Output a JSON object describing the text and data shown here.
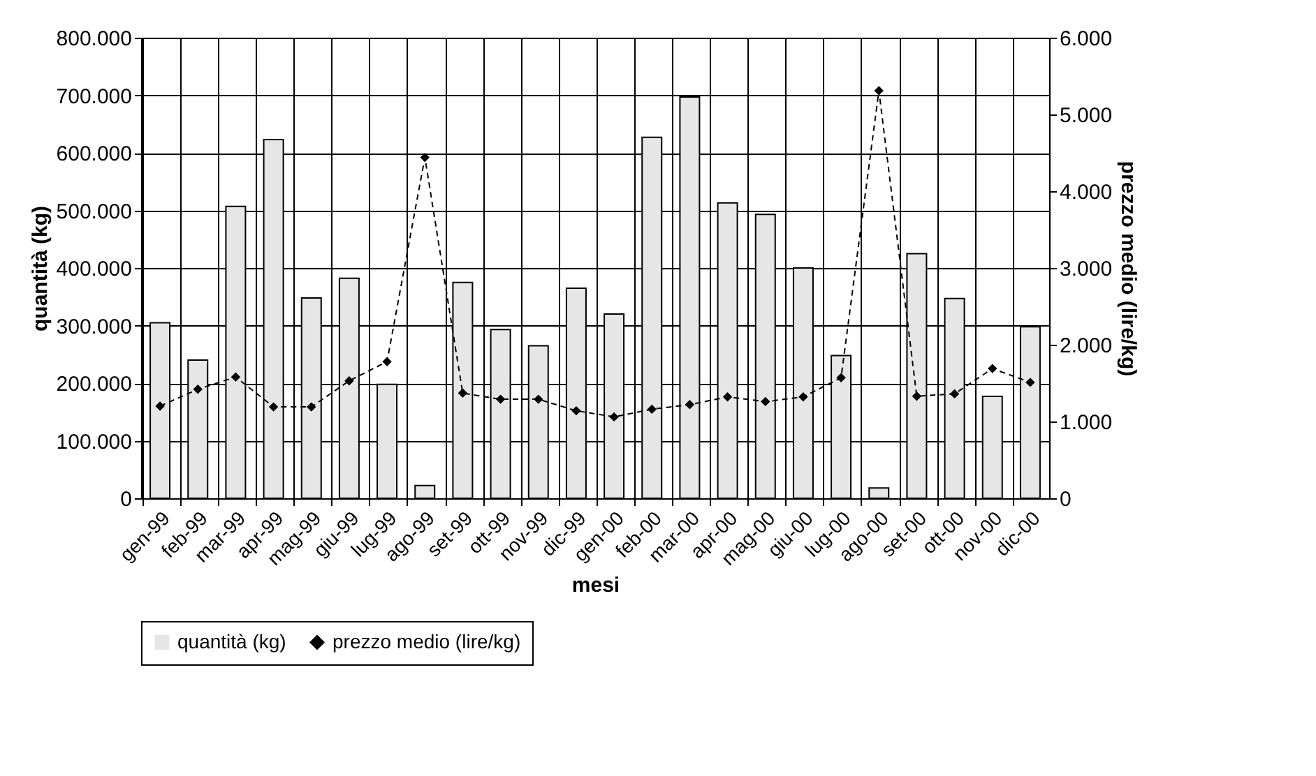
{
  "chart_data": {
    "type": "bar",
    "xlabel": "mesi",
    "ylabel": "quantità (kg)",
    "y2label": "prezzo medio (lire/kg)",
    "categories": [
      "gen-99",
      "feb-99",
      "mar-99",
      "apr-99",
      "mag-99",
      "giu-99",
      "lug-99",
      "ago-99",
      "set-99",
      "ott-99",
      "nov-99",
      "dic-99",
      "gen-00",
      "feb-00",
      "mar-00",
      "apr-00",
      "mag-00",
      "giu-00",
      "lug-00",
      "ago-00",
      "set-00",
      "ott-00",
      "nov-00",
      "dic-00"
    ],
    "series": [
      {
        "name": "quantità  (kg)",
        "color": "#e6e6e6",
        "values": [
          305000,
          240000,
          507000,
          623000,
          348000,
          382000,
          198000,
          22000,
          375000,
          293000,
          265000,
          365000,
          320000,
          627000,
          697000,
          513000,
          493000,
          400000,
          248000,
          18000,
          425000,
          347000,
          177000,
          298000
        ]
      },
      {
        "name": "prezzo medio (lire/kg)",
        "type": "line",
        "axis": "y2",
        "color": "#000000",
        "marker": "diamond",
        "line_style": "dashed",
        "values": [
          1200,
          1420,
          1580,
          1190,
          1190,
          1530,
          1780,
          4440,
          1370,
          1290,
          1290,
          1140,
          1060,
          1160,
          1220,
          1320,
          1260,
          1320,
          1570,
          5310,
          1330,
          1360,
          1690,
          1510
        ]
      }
    ],
    "ylim": [
      0,
      800000
    ],
    "yticks": [
      0,
      {
        "value": 100000,
        "label": "100.000"
      },
      {
        "value": 200000,
        "label": "200.000"
      },
      {
        "value": 300000,
        "label": "300.000"
      },
      {
        "value": 400000,
        "label": "400.000"
      },
      {
        "value": 500000,
        "label": "500.000"
      },
      {
        "value": 600000,
        "label": "600.000"
      },
      {
        "value": 700000,
        "label": "700.000"
      },
      {
        "value": 800000,
        "label": "800.000"
      }
    ],
    "y2lim": [
      0,
      6000
    ],
    "y2ticks": [
      0,
      {
        "value": 1000,
        "label": "1.000"
      },
      {
        "value": 2000,
        "label": "2.000"
      },
      {
        "value": 3000,
        "label": "3.000"
      },
      {
        "value": 4000,
        "label": "4.000"
      },
      {
        "value": 5000,
        "label": "5.000"
      },
      {
        "value": 6000,
        "label": "6.000"
      }
    ],
    "grid": true,
    "legend": "bottom"
  }
}
